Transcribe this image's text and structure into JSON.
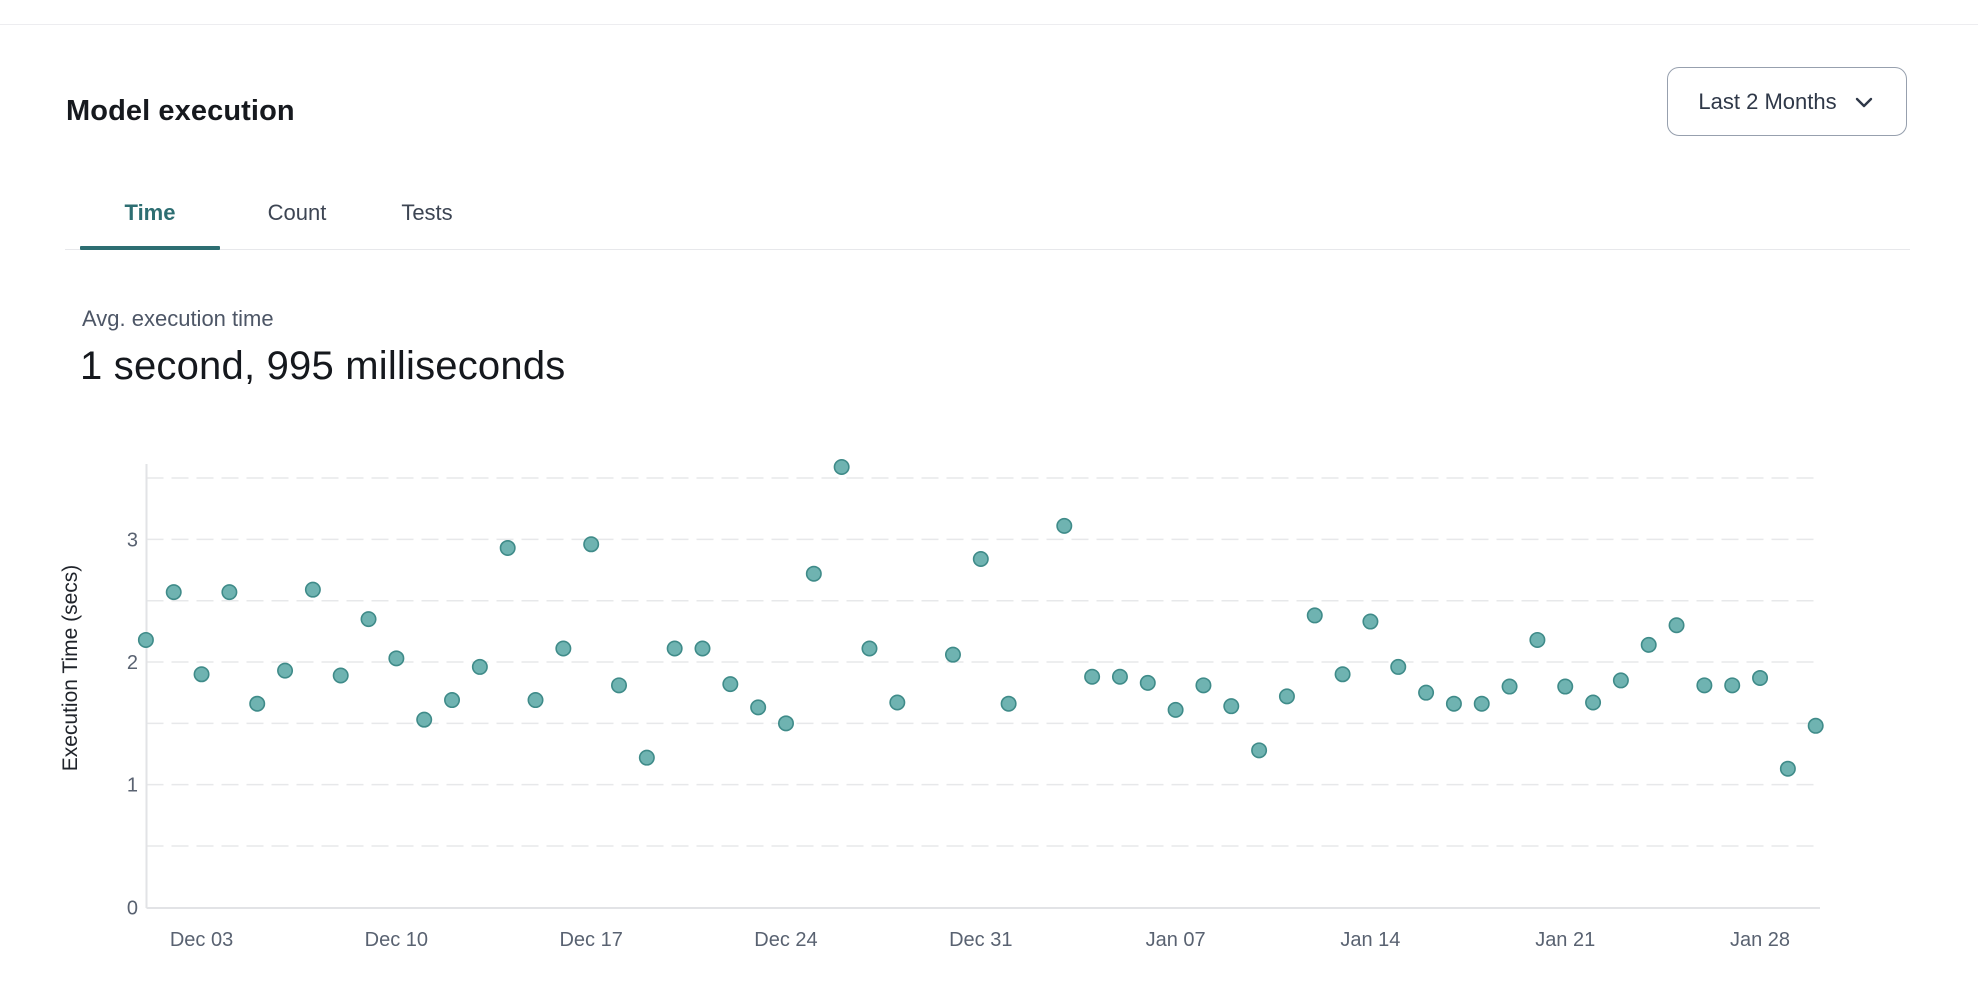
{
  "header": {
    "title": "Model execution",
    "range_selector": {
      "label": "Last 2 Months",
      "icon": "chevron-down"
    }
  },
  "tabs": [
    {
      "label": "Time",
      "active": true
    },
    {
      "label": "Count",
      "active": false
    },
    {
      "label": "Tests",
      "active": false
    }
  ],
  "kpi": {
    "label": "Avg. execution time",
    "value": "1 second, 995 milliseconds"
  },
  "chart_data": {
    "type": "scatter",
    "title": "",
    "xlabel": "",
    "ylabel": "Execution Time (secs)",
    "ylim": [
      0,
      3.7
    ],
    "yticks": [
      0,
      1,
      2,
      3
    ],
    "grid_step": 0.5,
    "grid_style": "dashed",
    "legend": "none",
    "x_ticks": [
      "Dec 03",
      "Dec 10",
      "Dec 17",
      "Dec 24",
      "Dec 31",
      "Jan 07",
      "Jan 14",
      "Jan 21",
      "Jan 28"
    ],
    "points": [
      {
        "date": "Dec 01",
        "value": 2.18
      },
      {
        "date": "Dec 02",
        "value": 2.57
      },
      {
        "date": "Dec 03",
        "value": 1.9
      },
      {
        "date": "Dec 04",
        "value": 2.57
      },
      {
        "date": "Dec 05",
        "value": 1.66
      },
      {
        "date": "Dec 06",
        "value": 1.93
      },
      {
        "date": "Dec 07",
        "value": 2.59
      },
      {
        "date": "Dec 08",
        "value": 1.89
      },
      {
        "date": "Dec 09",
        "value": 2.35
      },
      {
        "date": "Dec 10",
        "value": 2.03
      },
      {
        "date": "Dec 11",
        "value": 1.53
      },
      {
        "date": "Dec 12",
        "value": 1.69
      },
      {
        "date": "Dec 13",
        "value": 1.96
      },
      {
        "date": "Dec 14",
        "value": 2.93
      },
      {
        "date": "Dec 15",
        "value": 1.69
      },
      {
        "date": "Dec 16",
        "value": 2.11
      },
      {
        "date": "Dec 17",
        "value": 2.96
      },
      {
        "date": "Dec 18",
        "value": 1.81
      },
      {
        "date": "Dec 19",
        "value": 1.22
      },
      {
        "date": "Dec 20",
        "value": 2.11
      },
      {
        "date": "Dec 21",
        "value": 2.11
      },
      {
        "date": "Dec 22",
        "value": 1.82
      },
      {
        "date": "Dec 23",
        "value": 1.63
      },
      {
        "date": "Dec 24",
        "value": 1.5
      },
      {
        "date": "Dec 25",
        "value": 2.72
      },
      {
        "date": "Dec 26",
        "value": 3.59
      },
      {
        "date": "Dec 27",
        "value": 2.11
      },
      {
        "date": "Dec 28",
        "value": 1.67
      },
      {
        "date": "Dec 30",
        "value": 2.06
      },
      {
        "date": "Dec 31",
        "value": 2.84
      },
      {
        "date": "Jan 01",
        "value": 1.66
      },
      {
        "date": "Jan 03",
        "value": 3.11
      },
      {
        "date": "Jan 04",
        "value": 1.88
      },
      {
        "date": "Jan 05",
        "value": 1.88
      },
      {
        "date": "Jan 06",
        "value": 1.83
      },
      {
        "date": "Jan 07",
        "value": 1.61
      },
      {
        "date": "Jan 08",
        "value": 1.81
      },
      {
        "date": "Jan 09",
        "value": 1.64
      },
      {
        "date": "Jan 10",
        "value": 1.28
      },
      {
        "date": "Jan 11",
        "value": 1.72
      },
      {
        "date": "Jan 12",
        "value": 2.38
      },
      {
        "date": "Jan 13",
        "value": 1.9
      },
      {
        "date": "Jan 14",
        "value": 2.33
      },
      {
        "date": "Jan 15",
        "value": 1.96
      },
      {
        "date": "Jan 16",
        "value": 1.75
      },
      {
        "date": "Jan 17",
        "value": 1.66
      },
      {
        "date": "Jan 18",
        "value": 1.66
      },
      {
        "date": "Jan 19",
        "value": 1.8
      },
      {
        "date": "Jan 20",
        "value": 2.18
      },
      {
        "date": "Jan 21",
        "value": 1.8
      },
      {
        "date": "Jan 22",
        "value": 1.67
      },
      {
        "date": "Jan 23",
        "value": 1.85
      },
      {
        "date": "Jan 24",
        "value": 2.14
      },
      {
        "date": "Jan 25",
        "value": 2.3
      },
      {
        "date": "Jan 26",
        "value": 1.81
      },
      {
        "date": "Jan 27",
        "value": 1.81
      },
      {
        "date": "Jan 28",
        "value": 1.87
      },
      {
        "date": "Jan 29",
        "value": 1.13
      },
      {
        "date": "Jan 30",
        "value": 1.48
      }
    ]
  },
  "colors": {
    "accent_teal": "#2d6e72",
    "point_fill": "#6fb3b1",
    "point_stroke": "#3f8b89",
    "grid": "#e7e8ea",
    "axis": "#e2e3e6",
    "text_dark": "#15181d",
    "text_gray": "#4d5666",
    "tick_gray": "#596271",
    "button_border": "#97a0ae",
    "divider": "#e7e8eb"
  }
}
